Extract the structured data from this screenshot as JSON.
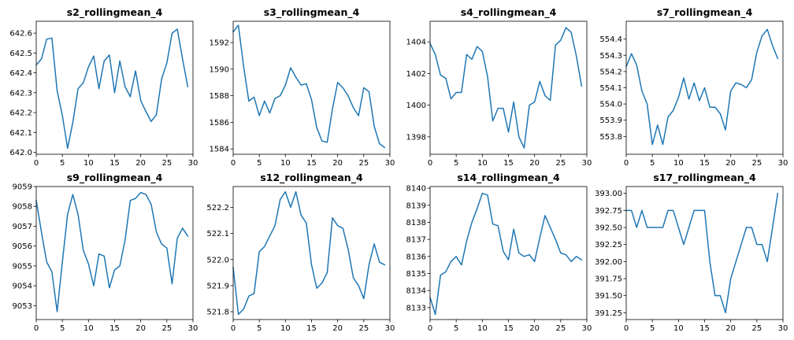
{
  "chart_data": [
    {
      "type": "line",
      "title": "s2_rollingmean_4",
      "x": [
        0,
        1,
        2,
        3,
        4,
        5,
        6,
        7,
        8,
        9,
        10,
        11,
        12,
        13,
        14,
        15,
        16,
        17,
        18,
        19,
        20,
        21,
        22,
        23,
        24,
        25,
        26,
        27,
        28,
        29
      ],
      "xlim": [
        0,
        30
      ],
      "xticks": [
        0,
        5,
        10,
        15,
        20,
        25,
        30
      ],
      "ylim": [
        641.99,
        642.66
      ],
      "yticks": [
        642.0,
        642.1,
        642.2,
        642.3,
        642.4,
        642.5,
        642.6
      ],
      "ytick_labels": [
        "642.0",
        "642.1",
        "642.2",
        "642.3",
        "642.4",
        "642.5",
        "642.6"
      ],
      "series": [
        {
          "values": [
            642.44,
            642.47,
            642.57,
            642.575,
            642.31,
            642.185,
            642.02,
            642.15,
            642.32,
            642.35,
            642.43,
            642.485,
            642.32,
            642.46,
            642.49,
            642.3,
            642.46,
            642.33,
            642.28,
            642.41,
            642.26,
            642.205,
            642.155,
            642.19,
            642.37,
            642.45,
            642.6,
            642.62,
            642.47,
            642.33
          ]
        }
      ]
    },
    {
      "type": "line",
      "title": "s3_rollingmean_4",
      "x": [
        0,
        1,
        2,
        3,
        4,
        5,
        6,
        7,
        8,
        9,
        10,
        11,
        12,
        13,
        14,
        15,
        16,
        17,
        18,
        19,
        20,
        21,
        22,
        23,
        24,
        25,
        26,
        27,
        28,
        29
      ],
      "xlim": [
        0,
        30
      ],
      "xticks": [
        0,
        5,
        10,
        15,
        20,
        25,
        30
      ],
      "ylim": [
        1583.6,
        1593.6
      ],
      "yticks": [
        1584,
        1586,
        1588,
        1590,
        1592
      ],
      "ytick_labels": [
        "1584",
        "1586",
        "1588",
        "1590",
        "1592"
      ],
      "series": [
        {
          "values": [
            1592.8,
            1593.3,
            1590.2,
            1587.6,
            1587.9,
            1586.5,
            1587.6,
            1586.7,
            1587.8,
            1588.0,
            1588.8,
            1590.1,
            1589.4,
            1588.8,
            1588.9,
            1587.7,
            1585.6,
            1584.6,
            1584.5,
            1587.0,
            1589.0,
            1588.6,
            1588.0,
            1587.1,
            1586.5,
            1588.6,
            1588.3,
            1585.7,
            1584.4,
            1584.1
          ]
        }
      ]
    },
    {
      "type": "line",
      "title": "s4_rollingmean_4",
      "x": [
        0,
        1,
        2,
        3,
        4,
        5,
        6,
        7,
        8,
        9,
        10,
        11,
        12,
        13,
        14,
        15,
        16,
        17,
        18,
        19,
        20,
        21,
        22,
        23,
        24,
        25,
        26,
        27,
        28,
        29
      ],
      "xlim": [
        0,
        30
      ],
      "xticks": [
        0,
        5,
        10,
        15,
        20,
        25,
        30
      ],
      "ylim": [
        1396.9,
        1405.3
      ],
      "yticks": [
        1398,
        1400,
        1402,
        1404
      ],
      "ytick_labels": [
        "1398",
        "1400",
        "1402",
        "1404"
      ],
      "series": [
        {
          "values": [
            1403.9,
            1403.2,
            1401.9,
            1401.7,
            1400.4,
            1400.8,
            1400.8,
            1403.2,
            1402.9,
            1403.7,
            1403.4,
            1401.8,
            1399.0,
            1399.8,
            1399.8,
            1398.3,
            1400.2,
            1398.0,
            1397.3,
            1400.0,
            1400.2,
            1401.5,
            1400.6,
            1400.3,
            1403.8,
            1404.1,
            1404.9,
            1404.6,
            1403.1,
            1401.2
          ]
        }
      ]
    },
    {
      "type": "line",
      "title": "s7_rollingmean_4",
      "x": [
        0,
        1,
        2,
        3,
        4,
        5,
        6,
        7,
        8,
        9,
        10,
        11,
        12,
        13,
        14,
        15,
        16,
        17,
        18,
        19,
        20,
        21,
        22,
        23,
        24,
        25,
        26,
        27,
        28,
        29
      ],
      "xlim": [
        0,
        30
      ],
      "xticks": [
        0,
        5,
        10,
        15,
        20,
        25,
        30
      ],
      "ylim": [
        553.69,
        554.51
      ],
      "yticks": [
        553.8,
        553.9,
        554.0,
        554.1,
        554.2,
        554.3,
        554.4
      ],
      "ytick_labels": [
        "553.8",
        "553.9",
        "554.0",
        "554.1",
        "554.2",
        "554.3",
        "554.4"
      ],
      "series": [
        {
          "values": [
            554.23,
            554.31,
            554.24,
            554.08,
            554.0,
            553.75,
            553.87,
            553.75,
            553.92,
            553.96,
            554.04,
            554.16,
            554.03,
            554.13,
            554.02,
            554.1,
            553.98,
            553.98,
            553.94,
            553.84,
            554.08,
            554.13,
            554.12,
            554.1,
            554.15,
            554.32,
            554.42,
            554.46,
            554.36,
            554.28
          ]
        }
      ]
    },
    {
      "type": "line",
      "title": "s9_rollingmean_4",
      "x": [
        0,
        1,
        2,
        3,
        4,
        5,
        6,
        7,
        8,
        9,
        10,
        11,
        12,
        13,
        14,
        15,
        16,
        17,
        18,
        19,
        20,
        21,
        22,
        23,
        24,
        25,
        26,
        27,
        28,
        29
      ],
      "xlim": [
        0,
        30
      ],
      "xticks": [
        0,
        5,
        10,
        15,
        20,
        25,
        30
      ],
      "ylim": [
        9052.3,
        9059.0
      ],
      "yticks": [
        9053,
        9054,
        9055,
        9056,
        9057,
        9058,
        9059
      ],
      "ytick_labels": [
        "9053",
        "9054",
        "9055",
        "9056",
        "9057",
        "9058",
        "9059"
      ],
      "series": [
        {
          "values": [
            9058.3,
            9056.7,
            9055.2,
            9054.7,
            9052.7,
            9055.2,
            9057.6,
            9058.6,
            9057.6,
            9055.8,
            9055.1,
            9054.0,
            9055.6,
            9055.5,
            9053.9,
            9054.8,
            9055.0,
            9056.3,
            9058.3,
            9058.4,
            9058.7,
            9058.6,
            9058.1,
            9056.7,
            9056.1,
            9055.9,
            9054.1,
            9056.4,
            9056.9,
            9056.5
          ]
        }
      ]
    },
    {
      "type": "line",
      "title": "s12_rollingmean_4",
      "x": [
        0,
        1,
        2,
        3,
        4,
        5,
        6,
        7,
        8,
        9,
        10,
        11,
        12,
        13,
        14,
        15,
        16,
        17,
        18,
        19,
        20,
        21,
        22,
        23,
        24,
        25,
        26,
        27,
        28,
        29
      ],
      "xlim": [
        0,
        30
      ],
      "xticks": [
        0,
        5,
        10,
        15,
        20,
        25,
        30
      ],
      "ylim": [
        521.77,
        522.28
      ],
      "yticks": [
        521.8,
        521.9,
        522.0,
        522.1,
        522.2
      ],
      "ytick_labels": [
        "521.8",
        "521.9",
        "522.0",
        "522.1",
        "522.2"
      ],
      "series": [
        {
          "values": [
            521.97,
            521.79,
            521.81,
            521.86,
            521.87,
            522.03,
            522.05,
            522.09,
            522.13,
            522.23,
            522.26,
            522.2,
            522.26,
            522.17,
            522.14,
            521.98,
            521.89,
            521.91,
            521.95,
            522.16,
            522.13,
            522.12,
            522.04,
            521.93,
            521.9,
            521.85,
            521.98,
            522.06,
            521.99,
            521.98
          ]
        }
      ]
    },
    {
      "type": "line",
      "title": "s14_rollingmean_4",
      "x": [
        0,
        1,
        2,
        3,
        4,
        5,
        6,
        7,
        8,
        9,
        10,
        11,
        12,
        13,
        14,
        15,
        16,
        17,
        18,
        19,
        20,
        21,
        22,
        23,
        24,
        25,
        26,
        27,
        28,
        29
      ],
      "xlim": [
        0,
        30
      ],
      "xticks": [
        0,
        5,
        10,
        15,
        20,
        25,
        30
      ],
      "ylim": [
        8132.3,
        8140.1
      ],
      "yticks": [
        8133,
        8134,
        8135,
        8136,
        8137,
        8138,
        8139,
        8140
      ],
      "ytick_labels": [
        "8133",
        "8134",
        "8135",
        "8136",
        "8137",
        "8138",
        "8139",
        "8140"
      ],
      "series": [
        {
          "values": [
            8133.6,
            8132.6,
            8134.9,
            8135.1,
            8135.7,
            8136.0,
            8135.5,
            8136.9,
            8138.0,
            8138.8,
            8139.7,
            8139.6,
            8137.9,
            8137.8,
            8136.3,
            8135.8,
            8137.6,
            8136.2,
            8136.0,
            8136.1,
            8135.7,
            8137.1,
            8138.4,
            8137.7,
            8137.0,
            8136.2,
            8136.1,
            8135.7,
            8136.0,
            8135.8
          ]
        }
      ]
    },
    {
      "type": "line",
      "title": "s17_rollingmean_4",
      "x": [
        0,
        1,
        2,
        3,
        4,
        5,
        6,
        7,
        8,
        9,
        10,
        11,
        12,
        13,
        14,
        15,
        16,
        17,
        18,
        19,
        20,
        21,
        22,
        23,
        24,
        25,
        26,
        27,
        28,
        29
      ],
      "xlim": [
        0,
        30
      ],
      "xticks": [
        0,
        5,
        10,
        15,
        20,
        25,
        30
      ],
      "ylim": [
        391.15,
        393.1
      ],
      "yticks": [
        391.25,
        391.5,
        391.75,
        392.0,
        392.25,
        392.5,
        392.75,
        393.0
      ],
      "ytick_labels": [
        "391.25",
        "391.50",
        "391.75",
        "392.00",
        "392.25",
        "392.50",
        "392.75",
        "393.00"
      ],
      "series": [
        {
          "values": [
            392.75,
            392.75,
            392.5,
            392.75,
            392.5,
            392.5,
            392.5,
            392.5,
            392.75,
            392.75,
            392.5,
            392.25,
            392.5,
            392.75,
            392.75,
            392.75,
            392.0,
            391.5,
            391.5,
            391.25,
            391.75,
            392.0,
            392.25,
            392.5,
            392.5,
            392.25,
            392.25,
            392.0,
            392.5,
            393.0
          ]
        }
      ]
    }
  ]
}
